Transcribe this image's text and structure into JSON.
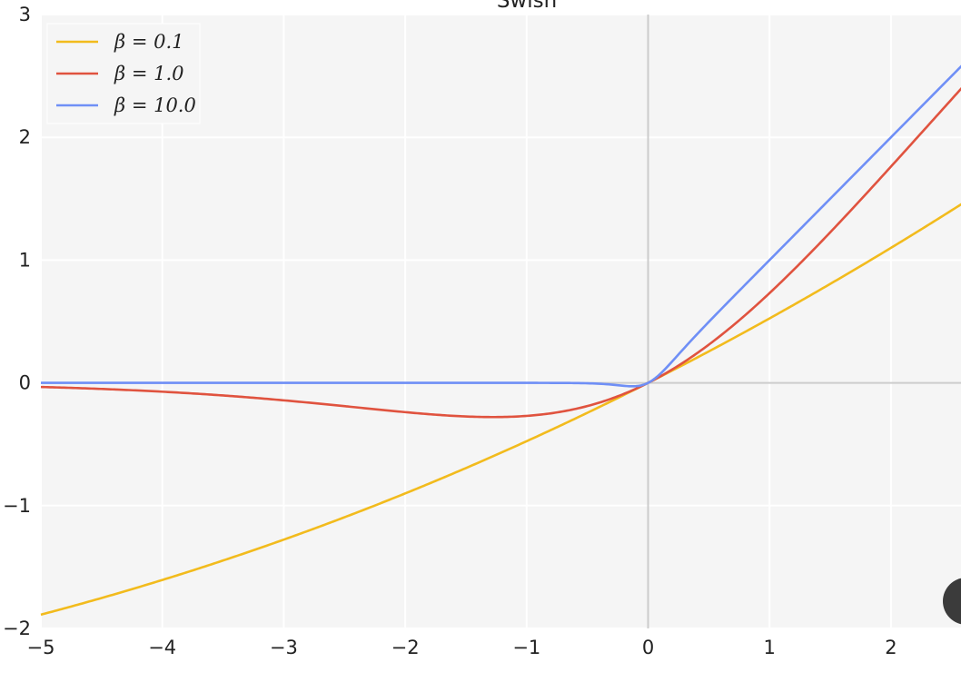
{
  "chart_data": {
    "type": "line",
    "title": "Swish",
    "xlabel": "",
    "ylabel": "",
    "xlim": [
      -5,
      2.6
    ],
    "ylim": [
      -2,
      3
    ],
    "grid": true,
    "legend_position": "top-left",
    "x_ticks": [
      -5,
      -4,
      -3,
      -2,
      -1,
      0,
      1,
      2
    ],
    "x_tick_labels": [
      "−5",
      "−4",
      "−3",
      "−2",
      "−1",
      "0",
      "1",
      "2"
    ],
    "y_ticks": [
      -2,
      -1,
      0,
      1,
      2,
      3
    ],
    "y_tick_labels": [
      "−2",
      "−1",
      "0",
      "1",
      "2",
      "3"
    ],
    "series": [
      {
        "name": "β = 0.1",
        "beta": 0.1,
        "color": "#f2bb1d",
        "x": [
          -5,
          -4,
          -3,
          -2,
          -1,
          0,
          1,
          2,
          2.6
        ],
        "y": [
          -1.89,
          -1.6,
          -1.28,
          -0.9,
          -0.48,
          0,
          0.52,
          1.1,
          1.45
        ]
      },
      {
        "name": "β = 1.0",
        "beta": 1.0,
        "color": "#e0533f",
        "x": [
          -5,
          -4,
          -3,
          -2,
          -1.28,
          -1,
          0,
          1,
          2,
          2.6
        ],
        "y": [
          -0.03,
          -0.07,
          -0.14,
          -0.24,
          -0.28,
          -0.27,
          0,
          0.73,
          1.76,
          2.41
        ]
      },
      {
        "name": "β = 10.0",
        "beta": 10.0,
        "color": "#6f8ff6",
        "x": [
          -5,
          -1,
          -0.5,
          -0.1,
          0,
          0.5,
          1,
          2,
          2.6
        ],
        "y": [
          0,
          0,
          0,
          -0.03,
          0,
          0.5,
          1,
          2,
          2.6
        ]
      }
    ]
  },
  "colors": {
    "plot_background": "#f5f5f5",
    "grid": "#ffffff",
    "zero_axis": "#cccccc"
  }
}
